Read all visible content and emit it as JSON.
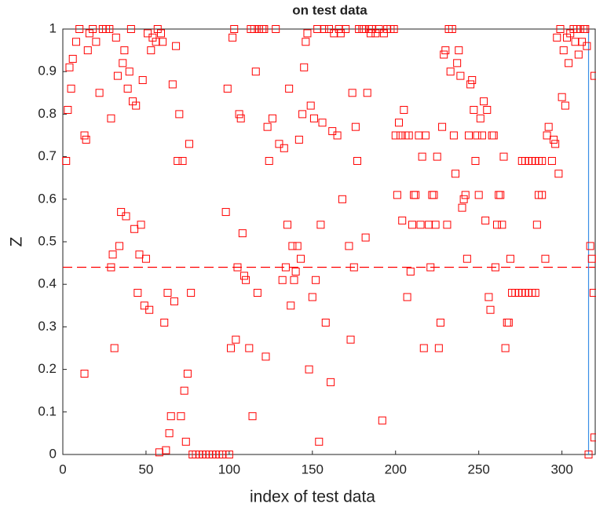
{
  "chart_data": {
    "type": "scatter",
    "title": "on test data",
    "xlabel": "index of test data",
    "ylabel": "Z",
    "marker": "square",
    "color": "#ff0000",
    "x": [
      2,
      3,
      4,
      5,
      6,
      8,
      10,
      13,
      13,
      14,
      15,
      16,
      18,
      20,
      22,
      24,
      26,
      28,
      29,
      29,
      30,
      31,
      32,
      33,
      34,
      35,
      36,
      37,
      38,
      39,
      40,
      41,
      42,
      43,
      44,
      45,
      46,
      47,
      48,
      49,
      50,
      51,
      52,
      53,
      54,
      56,
      57,
      58,
      59,
      60,
      61,
      62,
      63,
      64,
      65,
      66,
      67,
      68,
      69,
      70,
      71,
      72,
      73,
      74,
      75,
      76,
      77,
      78,
      80,
      82,
      84,
      86,
      88,
      90,
      92,
      94,
      96,
      98,
      99,
      100,
      101,
      102,
      103,
      104,
      105,
      106,
      107,
      108,
      109,
      110,
      112,
      113,
      114,
      115,
      116,
      117,
      118,
      120,
      121,
      122,
      123,
      124,
      126,
      128,
      130,
      132,
      133,
      134,
      135,
      136,
      137,
      138,
      139,
      140,
      141,
      142,
      143,
      144,
      145,
      146,
      147,
      148,
      149,
      150,
      151,
      152,
      153,
      154,
      155,
      156,
      157,
      158,
      160,
      161,
      162,
      163,
      165,
      166,
      167,
      168,
      170,
      172,
      173,
      174,
      175,
      176,
      177,
      178,
      180,
      181,
      182,
      183,
      184,
      185,
      186,
      188,
      190,
      192,
      193,
      195,
      197,
      199,
      200,
      201,
      202,
      203,
      204,
      205,
      206,
      207,
      208,
      209,
      210,
      211,
      212,
      214,
      215,
      216,
      217,
      218,
      220,
      221,
      222,
      223,
      224,
      225,
      226,
      227,
      228,
      229,
      230,
      231,
      232,
      233,
      234,
      235,
      236,
      237,
      238,
      239,
      240,
      241,
      242,
      243,
      244,
      245,
      246,
      247,
      248,
      249,
      250,
      251,
      252,
      253,
      254,
      255,
      256,
      257,
      258,
      259,
      260,
      261,
      262,
      263,
      264,
      265,
      266,
      267,
      268,
      269,
      270,
      272,
      274,
      276,
      278,
      280,
      282,
      284,
      276,
      278,
      280,
      282,
      284,
      286,
      288,
      285,
      286,
      288,
      290,
      291,
      292,
      294,
      295,
      296,
      297,
      298,
      299,
      300,
      301,
      302,
      303,
      304,
      305,
      307,
      308,
      309,
      310,
      311,
      312,
      313,
      314,
      315,
      316,
      317,
      318,
      319,
      319.5,
      319.5
    ],
    "y": [
      0.69,
      0.81,
      0.91,
      0.86,
      0.93,
      0.97,
      1,
      0.75,
      0.19,
      0.74,
      0.95,
      0.99,
      1,
      0.97,
      0.85,
      1,
      1,
      1,
      0.79,
      0.44,
      0.47,
      0.25,
      0.98,
      0.89,
      0.49,
      0.57,
      0.92,
      0.95,
      0.56,
      0.86,
      0.9,
      1,
      0.83,
      0.53,
      0.82,
      0.38,
      0.47,
      0.54,
      0.88,
      0.35,
      0.46,
      0.99,
      0.34,
      0.95,
      0.98,
      0.97,
      1,
      0.005,
      0.99,
      0.97,
      0.31,
      0.01,
      0.38,
      0.05,
      0.09,
      0.87,
      0.36,
      0.96,
      0.69,
      0.8,
      0.09,
      0.69,
      0.15,
      0.03,
      0.19,
      0.73,
      0.38,
      0,
      0,
      0,
      0,
      0,
      0,
      0,
      0,
      0,
      0,
      0.57,
      0.86,
      0,
      0.25,
      0.98,
      1,
      0.27,
      0.44,
      0.8,
      0.79,
      0.52,
      0.42,
      0.41,
      0.25,
      1,
      0.09,
      1,
      0.9,
      0.38,
      1,
      1,
      1,
      0.23,
      0.77,
      0.69,
      0.79,
      1,
      0.73,
      0.41,
      0.72,
      0.44,
      0.54,
      0.86,
      0.35,
      0.49,
      0.41,
      0.43,
      0.49,
      0.74,
      0.46,
      0.8,
      0.91,
      0.97,
      0.99,
      0.2,
      0.82,
      0.37,
      0.79,
      0.41,
      1,
      0.03,
      0.54,
      0.78,
      1,
      0.31,
      1,
      0.17,
      0.76,
      0.99,
      0.75,
      1,
      0.99,
      0.6,
      1,
      0.49,
      0.27,
      0.85,
      0.44,
      0.77,
      0.69,
      1,
      1,
      1,
      0.51,
      0.85,
      1,
      0.99,
      1,
      0.99,
      1,
      0.08,
      0.99,
      1,
      1,
      1,
      0.75,
      0.61,
      0.78,
      0.75,
      0.55,
      0.81,
      0.75,
      0.37,
      0.75,
      0.43,
      0.54,
      0.61,
      0.61,
      0.75,
      0.54,
      0.7,
      0.25,
      0.75,
      0.54,
      0.44,
      0.61,
      0.61,
      0.54,
      0.7,
      0.25,
      0.31,
      0.77,
      0.94,
      0.95,
      0.54,
      1,
      0.9,
      1,
      0.75,
      0.66,
      0.92,
      0.95,
      0.89,
      0.58,
      0.6,
      0.61,
      0.46,
      0.75,
      0.87,
      0.88,
      0.81,
      0.69,
      0.75,
      0.61,
      0.79,
      0.75,
      0.83,
      0.55,
      0.81,
      0.37,
      0.34,
      0.75,
      0.75,
      0.44,
      0.54,
      0.61,
      0.61,
      0.54,
      0.7,
      0.25,
      0.31,
      0.31,
      0.46,
      0.38,
      0.38,
      0.38,
      0.38,
      0.38,
      0.38,
      0.38,
      0.38,
      0.69,
      0.69,
      0.69,
      0.69,
      0.69,
      0.69,
      0.69,
      0.54,
      0.61,
      0.61,
      0.46,
      0.75,
      0.77,
      0.69,
      0.74,
      0.73,
      0.98,
      0.66,
      1,
      0.84,
      0.95,
      0.82,
      0.98,
      0.92,
      0.99,
      1,
      0.97,
      1,
      0.94,
      1,
      0.97,
      1,
      1,
      0.96,
      0,
      0.49,
      0.46,
      0.38,
      0.89,
      0.04
    ],
    "xlim": [
      0,
      320
    ],
    "ylim": [
      0,
      1
    ],
    "xticks": [
      0,
      50,
      100,
      150,
      200,
      250,
      300
    ],
    "yticks": [
      0,
      0.1,
      0.2,
      0.3,
      0.4,
      0.5,
      0.6,
      0.7,
      0.8,
      0.9,
      1
    ],
    "reference_lines": [
      {
        "axis": "y",
        "value": 0.44,
        "color": "#ff0000",
        "dashed": true
      },
      {
        "axis": "x",
        "value": 316,
        "color": "#3a8ee6",
        "dashed": false
      }
    ]
  }
}
